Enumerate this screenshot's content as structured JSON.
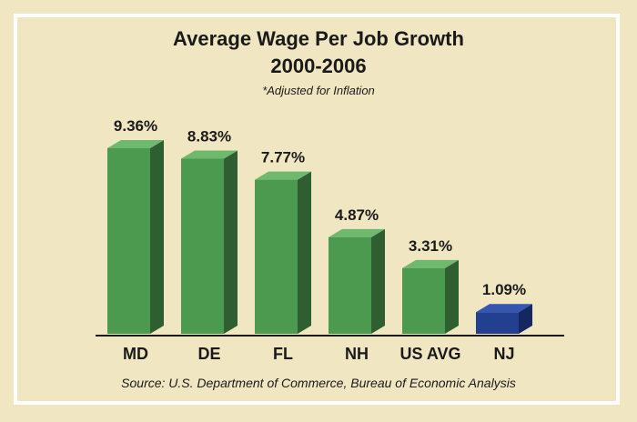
{
  "colors": {
    "background": "#f1e6c2",
    "bar_front": "#4c9a4f",
    "bar_side": "#2f5f31",
    "bar_top": "#6fb96f",
    "highlight_front": "#233f8f",
    "highlight_side": "#142760",
    "highlight_top": "#3555b0"
  },
  "chart_data": {
    "type": "bar",
    "title": "Average Wage Per Job Growth",
    "subtitle": "2000-2006",
    "note": "*Adjusted for Inflation",
    "categories": [
      "MD",
      "DE",
      "FL",
      "NH",
      "US AVG",
      "NJ"
    ],
    "values": [
      9.36,
      8.83,
      7.77,
      4.87,
      3.31,
      1.09
    ],
    "value_labels": [
      "9.36%",
      "8.83%",
      "7.77%",
      "4.87%",
      "3.31%",
      "1.09%"
    ],
    "highlight": "NJ",
    "ylim": [
      0,
      10
    ],
    "grid": false,
    "source": "Source: U.S. Department of Commerce, Bureau of Economic Analysis"
  }
}
